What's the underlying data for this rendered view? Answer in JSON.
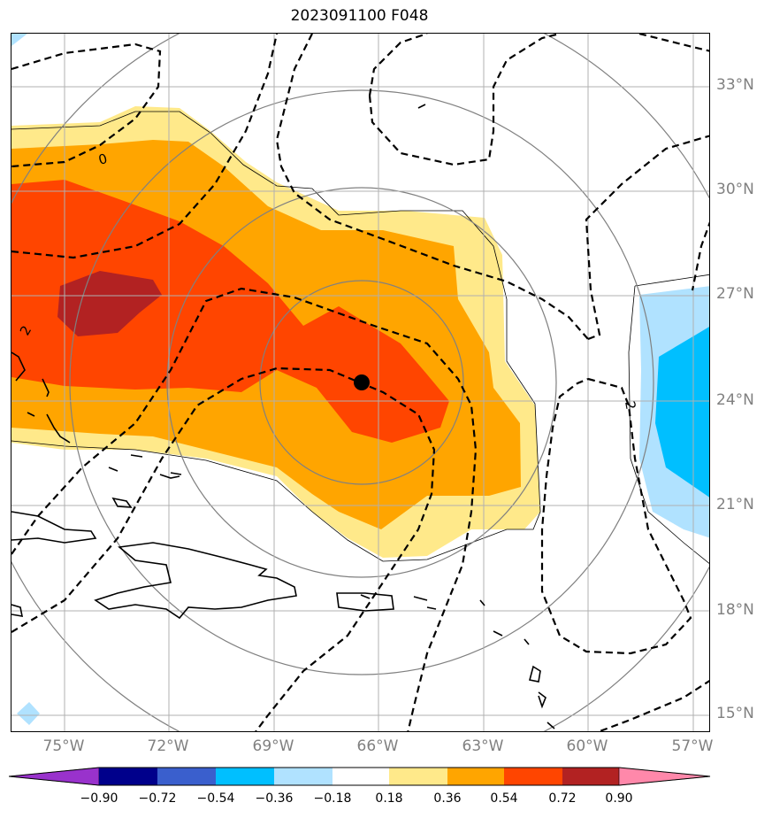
{
  "title": "2023091100 F048",
  "lat_labels": [
    "33°N",
    "30°N",
    "27°N",
    "24°N",
    "21°N",
    "18°N",
    "15°N"
  ],
  "lon_labels": [
    "75°W",
    "72°W",
    "69°W",
    "66°W",
    "63°W",
    "60°W",
    "57°W"
  ],
  "contour_labels": [
    "0",
    "2",
    "2"
  ],
  "colorbar": {
    "ticks": [
      "−0.90",
      "−0.72",
      "−0.54",
      "−0.36",
      "−0.18",
      "0.18",
      "0.36",
      "0.54",
      "0.72",
      "0.90"
    ],
    "colors": [
      "#9932cc",
      "#00008b",
      "#3a5fcd",
      "#00bfff",
      "#b0e2ff",
      "#ffffff",
      "#ffe98a",
      "#ffa500",
      "#ff4500",
      "#b22222",
      "#ff88aa"
    ]
  },
  "storm_marker": "storm-center"
}
